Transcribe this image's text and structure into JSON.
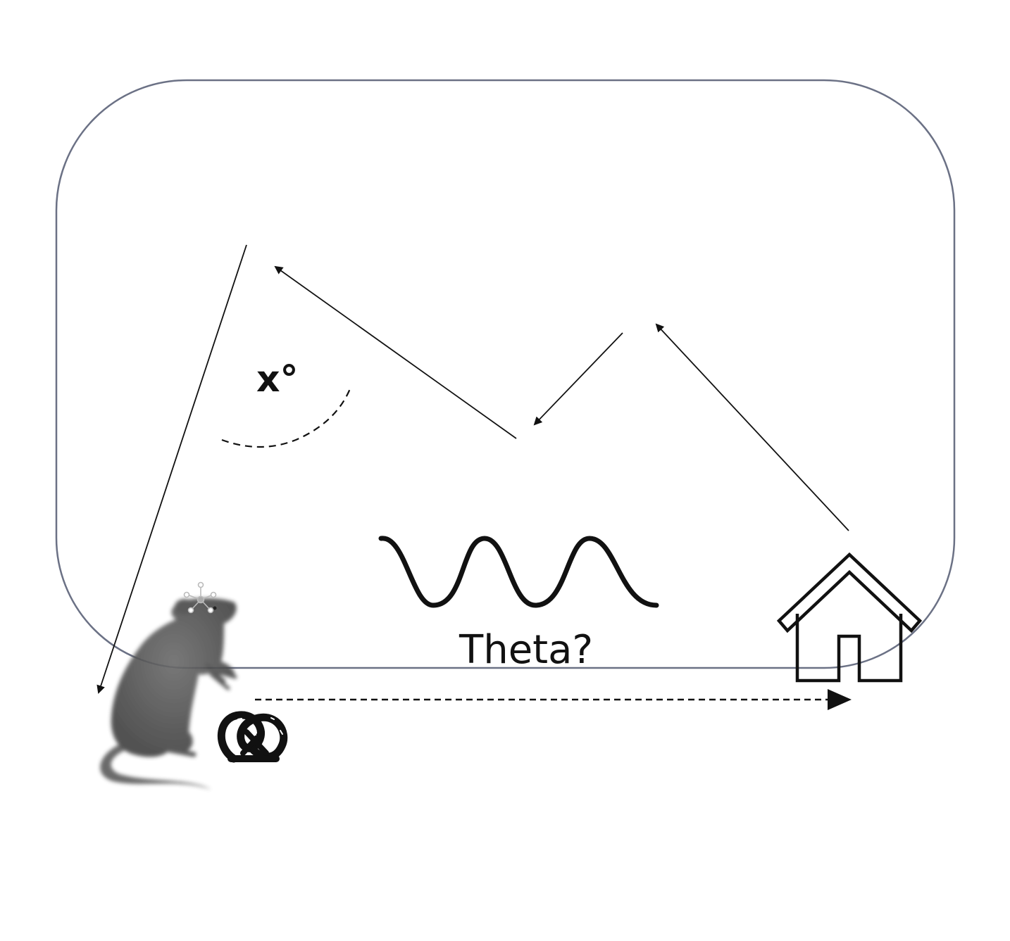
{
  "diagram": {
    "angle_label": "x°",
    "oscillation_label": "Theta?"
  },
  "colors": {
    "frame_stroke": "#6b7185",
    "ink": "#111111",
    "rat_body": "#555555"
  },
  "icons": {
    "animal": "rat-icon",
    "implant": "electrode-icon",
    "reward": "pretzel-icon",
    "goal": "house-icon",
    "wave": "sine-wave-icon"
  }
}
